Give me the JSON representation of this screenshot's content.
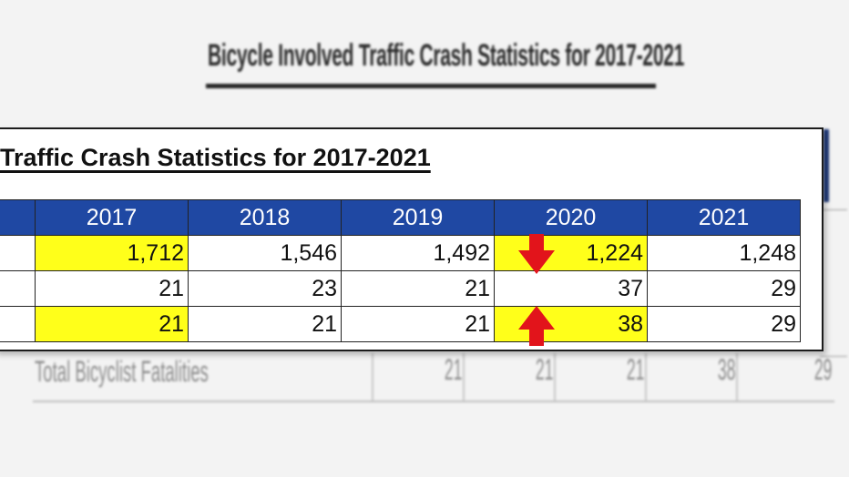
{
  "background_document": {
    "title": "Bicycle Involved Traffic Crash Statistics for 2017-2021",
    "row_label": "Total Bicyclist Fatalities",
    "row_values": [
      "21",
      "21",
      "21",
      "38",
      "29"
    ]
  },
  "card": {
    "title": "Traffic Crash Statistics for 2017-2021",
    "columns": [
      "2017",
      "2018",
      "2019",
      "2020",
      "2021"
    ],
    "rows": [
      {
        "values": [
          "1,712",
          "1,546",
          "1,492",
          "1,224",
          "1,248"
        ]
      },
      {
        "values": [
          "21",
          "23",
          "21",
          "37",
          "29"
        ]
      },
      {
        "values": [
          "21",
          "21",
          "21",
          "38",
          "29"
        ]
      }
    ]
  },
  "colors": {
    "header_blue": "#1f48a3",
    "highlight_yellow": "#ffff1a",
    "arrow_red": "#e2141b"
  },
  "annotations": {
    "down_arrow": "arrow-down-icon",
    "up_arrow": "arrow-up-icon"
  }
}
